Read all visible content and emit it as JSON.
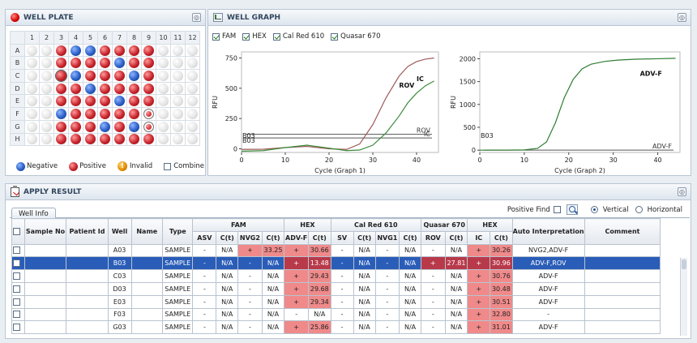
{
  "well_plate": {
    "title": "WELL PLATE",
    "columns": [
      "1",
      "2",
      "3",
      "4",
      "5",
      "6",
      "7",
      "8",
      "9",
      "10",
      "11",
      "12"
    ],
    "rows": [
      "A",
      "B",
      "C",
      "D",
      "E",
      "F",
      "G",
      "H"
    ],
    "wells": [
      "EEPNNPPPPEEE",
      "EEPPPPNPPEEE",
      "EESNPPPNPEEE",
      "EEPPNPPPPEEE",
      "EEPPPPNPPEEE",
      "EENPPPPPHEEE",
      "EEPPPNPNHEEE",
      "EEPPPPPPPEEE"
    ],
    "legend": {
      "negative": "Negative",
      "positive": "Positive",
      "invalid": "Invalid",
      "combine": "Combine"
    }
  },
  "well_graph": {
    "title": "WELL GRAPH",
    "channels": [
      {
        "label": "FAM",
        "checked": true
      },
      {
        "label": "HEX",
        "checked": true
      },
      {
        "label": "Cal Red 610",
        "checked": true
      },
      {
        "label": "Quasar 670",
        "checked": true
      }
    ],
    "chart_data": [
      {
        "type": "line",
        "xlabel": "Cycle (Graph 1)",
        "ylabel": "RFU",
        "xlim": [
          0,
          45
        ],
        "ylim": [
          -30,
          800
        ],
        "xticks": [
          "0",
          "10",
          "20",
          "30",
          "40"
        ],
        "yticks": [
          "0",
          "250",
          "500",
          "750"
        ],
        "threshold_lines": [
          {
            "label": "ROV",
            "value": 120
          },
          {
            "label": "IC",
            "value": 90
          }
        ],
        "baseline_labels": [
          "B03",
          "B03"
        ],
        "annotations": [
          "IC",
          "ROV"
        ],
        "series": [
          {
            "color": "#a05a5a",
            "x": [
              0,
              5,
              10,
              15,
              20,
              24,
              27,
              30,
              33,
              36,
              38,
              40,
              42,
              44
            ],
            "y": [
              -5,
              -3,
              10,
              20,
              0,
              -5,
              40,
              200,
              420,
              600,
              680,
              720,
              740,
              750
            ]
          },
          {
            "color": "#3a8a3a",
            "x": [
              0,
              5,
              10,
              15,
              20,
              24,
              27,
              30,
              33,
              36,
              38,
              40,
              42,
              44
            ],
            "y": [
              -20,
              -15,
              10,
              30,
              5,
              -15,
              -10,
              30,
              130,
              270,
              380,
              460,
              520,
              560
            ]
          }
        ]
      },
      {
        "type": "line",
        "xlabel": "Cycle (Graph 2)",
        "ylabel": "RFU",
        "xlim": [
          0,
          45
        ],
        "ylim": [
          -50,
          2150
        ],
        "xticks": [
          "0",
          "10",
          "20",
          "30",
          "40"
        ],
        "yticks": [
          "0",
          "500",
          "1000",
          "1500",
          "2000"
        ],
        "threshold_lines": [
          {
            "label": "ADV-F",
            "value": 0
          }
        ],
        "baseline_labels": [
          "B03"
        ],
        "annotations": [
          "ADV-F"
        ],
        "series": [
          {
            "color": "#2e7d32",
            "x": [
              0,
              5,
              10,
              13,
              15,
              17,
              19,
              21,
              23,
              25,
              28,
              31,
              35,
              40,
              44
            ],
            "y": [
              0,
              0,
              5,
              40,
              180,
              600,
              1150,
              1550,
              1780,
              1880,
              1940,
              1970,
              1990,
              2000,
              2010
            ]
          }
        ]
      }
    ]
  },
  "apply_result": {
    "title": "APPLY RESULT",
    "tab": "Well Info",
    "find_label": "Positive Find",
    "vertical_label": "Vertical",
    "horizontal_label": "Horizontal",
    "groups": [
      "FAM",
      "HEX",
      "Cal Red 610",
      "Quasar 670",
      "HEX"
    ],
    "headers": [
      "Sample No",
      "Patient Id",
      "Well",
      "Name",
      "Type",
      "Auto  Interpretation",
      "Comment"
    ],
    "subheaders": [
      "ASV",
      "C(t)",
      "NVG2",
      "C(t)",
      "ADV-F",
      "C(t)",
      "SV",
      "C(t)",
      "NVG1",
      "C(t)",
      "ROV",
      "C(t)",
      "IC",
      "C(t)"
    ],
    "rows": [
      {
        "well": "A03",
        "type": "SAMPLE",
        "cells": [
          "-",
          "N/A",
          "+",
          "33.25",
          "+",
          "30.66",
          "-",
          "N/A",
          "-",
          "N/A",
          "-",
          "N/A",
          "+",
          "30.26"
        ],
        "interp": "NVG2,ADV-F",
        "selected": false
      },
      {
        "well": "B03",
        "type": "SAMPLE",
        "cells": [
          "-",
          "N/A",
          "-",
          "N/A",
          "+",
          "13.48",
          "-",
          "N/A",
          "-",
          "N/A",
          "+",
          "27.81",
          "+",
          "30.96"
        ],
        "interp": "ADV-F,ROV",
        "selected": true
      },
      {
        "well": "C03",
        "type": "SAMPLE",
        "cells": [
          "-",
          "N/A",
          "-",
          "N/A",
          "+",
          "29.43",
          "-",
          "N/A",
          "-",
          "N/A",
          "-",
          "N/A",
          "+",
          "30.76"
        ],
        "interp": "ADV-F",
        "selected": false
      },
      {
        "well": "D03",
        "type": "SAMPLE",
        "cells": [
          "-",
          "N/A",
          "-",
          "N/A",
          "+",
          "29.68",
          "-",
          "N/A",
          "-",
          "N/A",
          "-",
          "N/A",
          "+",
          "30.48"
        ],
        "interp": "ADV-F",
        "selected": false
      },
      {
        "well": "E03",
        "type": "SAMPLE",
        "cells": [
          "-",
          "N/A",
          "-",
          "N/A",
          "+",
          "29.34",
          "-",
          "N/A",
          "-",
          "N/A",
          "-",
          "N/A",
          "+",
          "30.51"
        ],
        "interp": "ADV-F",
        "selected": false
      },
      {
        "well": "F03",
        "type": "SAMPLE",
        "cells": [
          "-",
          "N/A",
          "-",
          "N/A",
          "-",
          "N/A",
          "-",
          "N/A",
          "-",
          "N/A",
          "-",
          "N/A",
          "+",
          "32.80"
        ],
        "interp": "-",
        "selected": false
      },
      {
        "well": "G03",
        "type": "SAMPLE",
        "cells": [
          "-",
          "N/A",
          "-",
          "N/A",
          "+",
          "25.86",
          "-",
          "N/A",
          "-",
          "N/A",
          "-",
          "N/A",
          "+",
          "31.01"
        ],
        "interp": "ADV-F",
        "selected": false
      }
    ]
  }
}
